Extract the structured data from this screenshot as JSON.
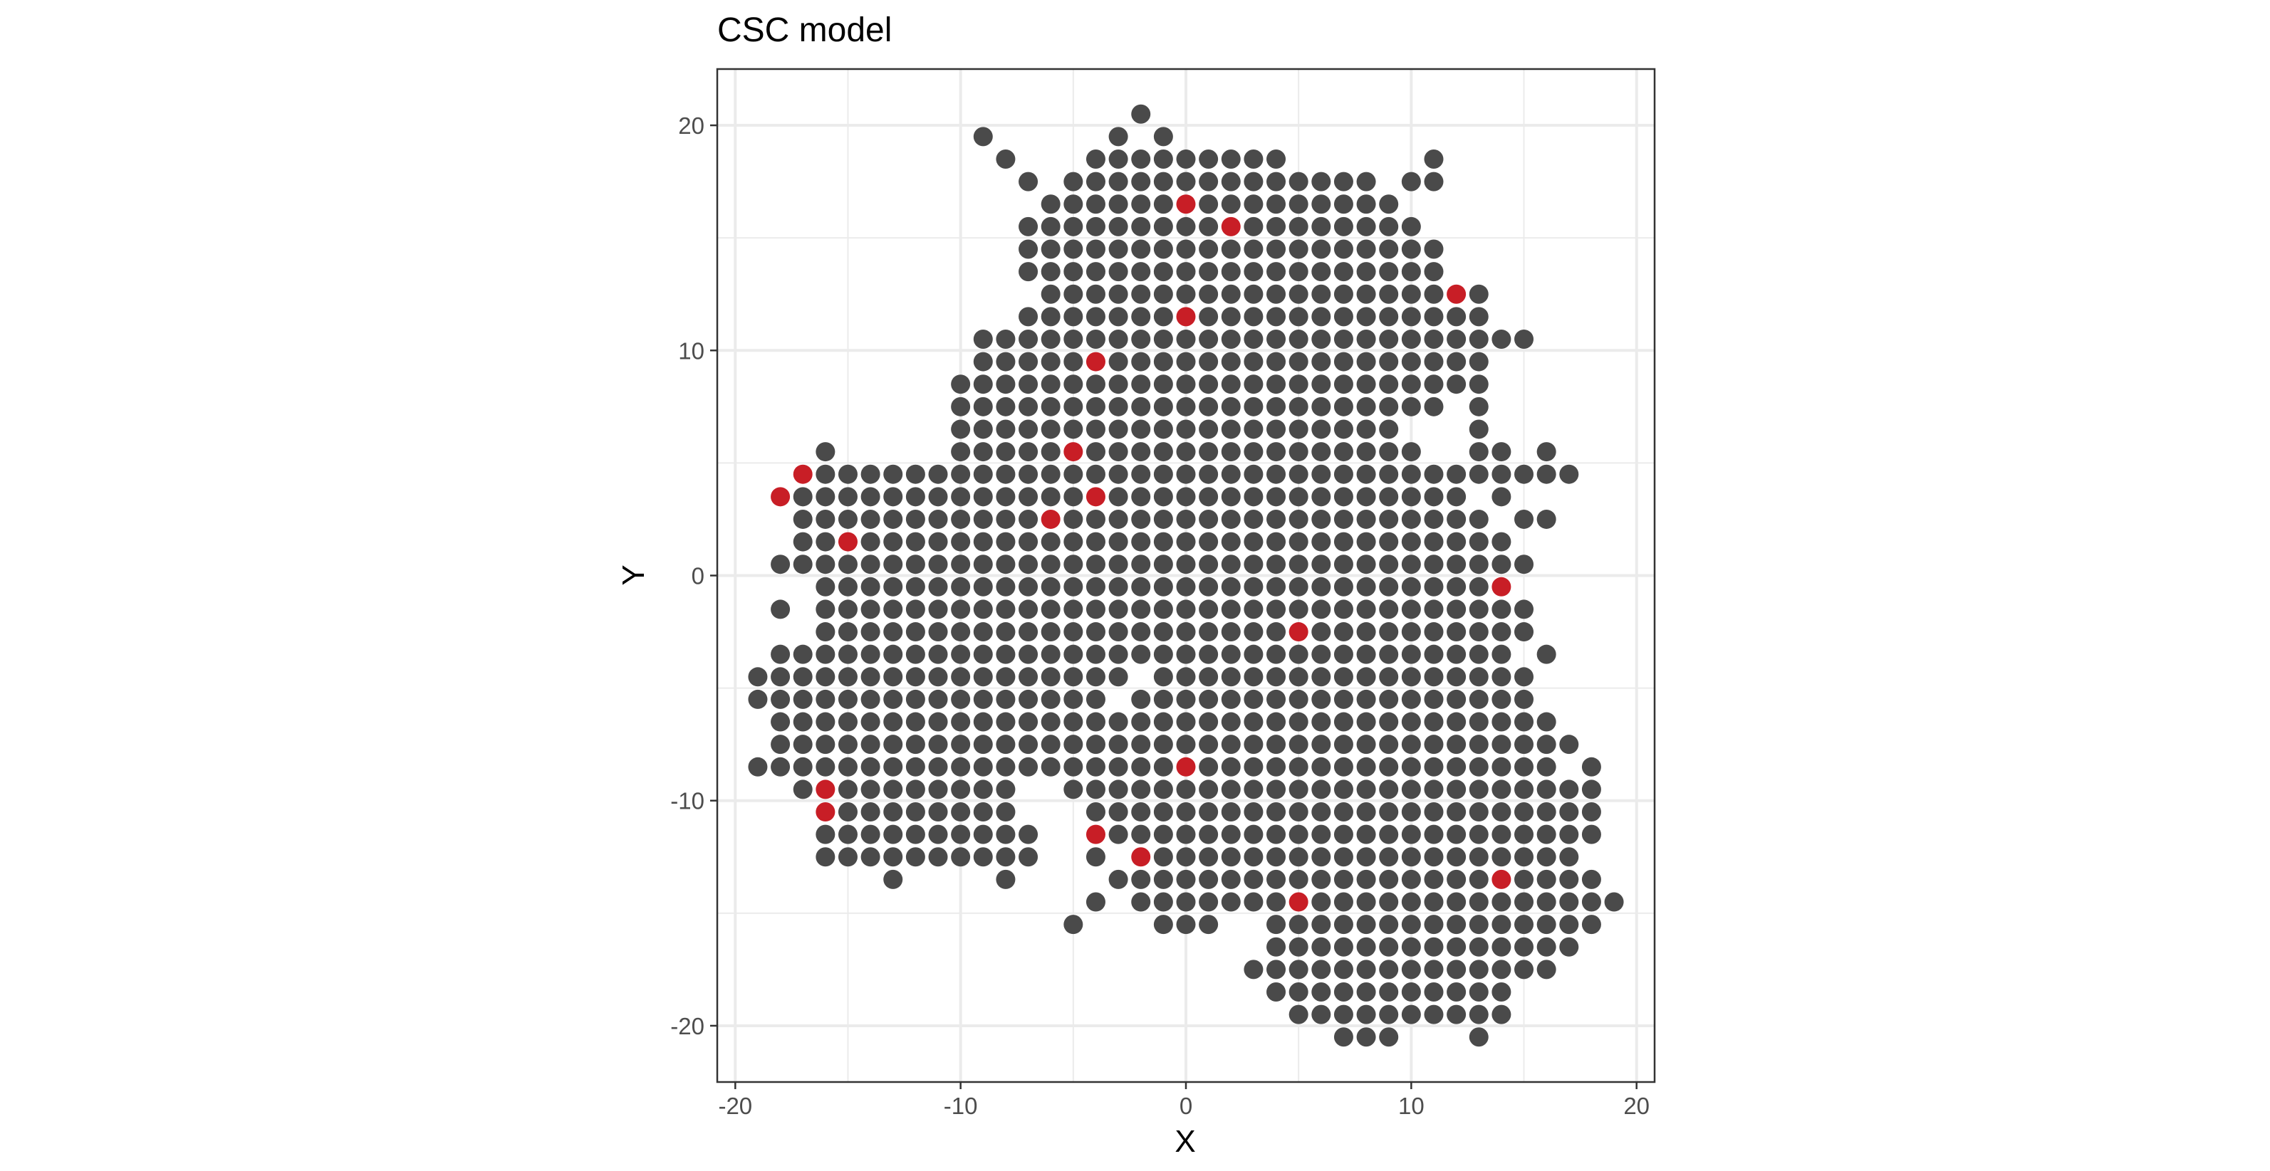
{
  "chart_data": {
    "type": "scatter",
    "title": "CSC model",
    "xlabel": "X",
    "ylabel": "Y",
    "xlim": [
      -20.8,
      20.8
    ],
    "ylim": [
      -22.5,
      22.5
    ],
    "x_ticks": [
      -20,
      -10,
      0,
      10,
      20
    ],
    "y_ticks": [
      -20,
      -10,
      0,
      10,
      20
    ],
    "x_tick_labels": [
      "-20",
      "-10",
      "0",
      "10",
      "20"
    ],
    "y_tick_labels": [
      "-20",
      "-10",
      "0",
      "10",
      "20"
    ],
    "grid": true,
    "legend": "none",
    "colors": {
      "base": "#4a4a4a",
      "highlight": "#c81e26",
      "grid": "#ebebeb",
      "panel_border": "#333333"
    },
    "rows": [
      {
        "y": 20.5,
        "x": [
          -2
        ]
      },
      {
        "y": 19.5,
        "x": [
          -9,
          -3,
          -1
        ]
      },
      {
        "y": 18.5,
        "x": [
          -8,
          -4,
          -3,
          -2,
          -1,
          0,
          1,
          2,
          3,
          4,
          11
        ]
      },
      {
        "y": 17.5,
        "x": [
          -7,
          -5,
          -4,
          -3,
          -2,
          -1,
          0,
          1,
          2,
          3,
          4,
          5,
          6,
          7,
          8,
          10,
          11
        ]
      },
      {
        "y": 16.5,
        "x": [
          -6,
          -5,
          -4,
          -3,
          -2,
          -1,
          0,
          1,
          2,
          3,
          4,
          5,
          6,
          7,
          8,
          9
        ]
      },
      {
        "y": 15.5,
        "x": [
          -7,
          -6,
          -5,
          -4,
          -3,
          -2,
          -1,
          0,
          1,
          2,
          3,
          4,
          5,
          6,
          7,
          8,
          9,
          10
        ]
      },
      {
        "y": 14.5,
        "x": [
          -7,
          -6,
          -5,
          -4,
          -3,
          -2,
          -1,
          0,
          1,
          2,
          3,
          4,
          5,
          6,
          7,
          8,
          9,
          10,
          11
        ]
      },
      {
        "y": 13.5,
        "x": [
          -7,
          -6,
          -5,
          -4,
          -3,
          -2,
          -1,
          0,
          1,
          2,
          3,
          4,
          5,
          6,
          7,
          8,
          9,
          10,
          11
        ]
      },
      {
        "y": 12.5,
        "x": [
          -6,
          -5,
          -4,
          -3,
          -2,
          -1,
          0,
          1,
          2,
          3,
          4,
          5,
          6,
          7,
          8,
          9,
          10,
          11,
          12,
          13
        ]
      },
      {
        "y": 11.5,
        "x": [
          -7,
          -6,
          -5,
          -4,
          -3,
          -2,
          -1,
          0,
          1,
          2,
          3,
          4,
          5,
          6,
          7,
          8,
          9,
          10,
          11,
          12,
          13
        ]
      },
      {
        "y": 10.5,
        "x": [
          -9,
          -8,
          -7,
          -6,
          -5,
          -4,
          -3,
          -2,
          -1,
          0,
          1,
          2,
          3,
          4,
          5,
          6,
          7,
          8,
          9,
          10,
          11,
          12,
          13,
          14,
          15
        ]
      },
      {
        "y": 9.5,
        "x": [
          -9,
          -8,
          -7,
          -6,
          -5,
          -4,
          -3,
          -2,
          -1,
          0,
          1,
          2,
          3,
          4,
          5,
          6,
          7,
          8,
          9,
          10,
          11,
          12,
          13
        ]
      },
      {
        "y": 8.5,
        "x": [
          -10,
          -9,
          -8,
          -7,
          -6,
          -5,
          -4,
          -3,
          -2,
          -1,
          0,
          1,
          2,
          3,
          4,
          5,
          6,
          7,
          8,
          9,
          10,
          11,
          12,
          13
        ]
      },
      {
        "y": 7.5,
        "x": [
          -10,
          -9,
          -8,
          -7,
          -6,
          -5,
          -4,
          -3,
          -2,
          -1,
          0,
          1,
          2,
          3,
          4,
          5,
          6,
          7,
          8,
          9,
          10,
          11,
          13
        ]
      },
      {
        "y": 6.5,
        "x": [
          -10,
          -9,
          -8,
          -7,
          -6,
          -5,
          -4,
          -3,
          -2,
          -1,
          0,
          1,
          2,
          3,
          4,
          5,
          6,
          7,
          8,
          9,
          13
        ]
      },
      {
        "y": 5.5,
        "x": [
          -16,
          -10,
          -9,
          -8,
          -7,
          -6,
          -5,
          -4,
          -3,
          -2,
          -1,
          0,
          1,
          2,
          3,
          4,
          5,
          6,
          7,
          8,
          9,
          10,
          13,
          14,
          16
        ]
      },
      {
        "y": 4.5,
        "x": [
          -17,
          -16,
          -15,
          -14,
          -13,
          -12,
          -11,
          -10,
          -9,
          -8,
          -7,
          -6,
          -5,
          -4,
          -3,
          -2,
          -1,
          0,
          1,
          2,
          3,
          4,
          5,
          6,
          7,
          8,
          9,
          10,
          11,
          12,
          13,
          14,
          15,
          16,
          17
        ]
      },
      {
        "y": 3.5,
        "x": [
          -18,
          -17,
          -16,
          -15,
          -14,
          -13,
          -12,
          -11,
          -10,
          -9,
          -8,
          -7,
          -6,
          -5,
          -4,
          -3,
          -2,
          -1,
          0,
          1,
          2,
          3,
          4,
          5,
          6,
          7,
          8,
          9,
          10,
          11,
          12,
          14
        ]
      },
      {
        "y": 2.5,
        "x": [
          -17,
          -16,
          -15,
          -14,
          -13,
          -12,
          -11,
          -10,
          -9,
          -8,
          -7,
          -6,
          -5,
          -4,
          -3,
          -2,
          -1,
          0,
          1,
          2,
          3,
          4,
          5,
          6,
          7,
          8,
          9,
          10,
          11,
          12,
          13,
          15,
          16
        ]
      },
      {
        "y": 1.5,
        "x": [
          -17,
          -16,
          -15,
          -14,
          -13,
          -12,
          -11,
          -10,
          -9,
          -8,
          -7,
          -6,
          -5,
          -4,
          -3,
          -2,
          -1,
          0,
          1,
          2,
          3,
          4,
          5,
          6,
          7,
          8,
          9,
          10,
          11,
          12,
          13,
          14
        ]
      },
      {
        "y": 0.5,
        "x": [
          -18,
          -17,
          -16,
          -15,
          -14,
          -13,
          -12,
          -11,
          -10,
          -9,
          -8,
          -7,
          -6,
          -5,
          -4,
          -3,
          -2,
          -1,
          0,
          1,
          2,
          3,
          4,
          5,
          6,
          7,
          8,
          9,
          10,
          11,
          12,
          13,
          14,
          15
        ]
      },
      {
        "y": -0.5,
        "x": [
          -16,
          -15,
          -14,
          -13,
          -12,
          -11,
          -10,
          -9,
          -8,
          -7,
          -6,
          -5,
          -4,
          -3,
          -2,
          -1,
          0,
          1,
          2,
          3,
          4,
          5,
          6,
          7,
          8,
          9,
          10,
          11,
          12,
          13,
          14
        ]
      },
      {
        "y": -1.5,
        "x": [
          -18,
          -16,
          -15,
          -14,
          -13,
          -12,
          -11,
          -10,
          -9,
          -8,
          -7,
          -6,
          -5,
          -4,
          -3,
          -2,
          -1,
          0,
          1,
          2,
          3,
          4,
          5,
          6,
          7,
          8,
          9,
          10,
          11,
          12,
          13,
          14,
          15
        ]
      },
      {
        "y": -2.5,
        "x": [
          -16,
          -15,
          -14,
          -13,
          -12,
          -11,
          -10,
          -9,
          -8,
          -7,
          -6,
          -5,
          -4,
          -3,
          -2,
          -1,
          0,
          1,
          2,
          3,
          4,
          5,
          6,
          7,
          8,
          9,
          10,
          11,
          12,
          13,
          14,
          15
        ]
      },
      {
        "y": -3.5,
        "x": [
          -18,
          -17,
          -16,
          -15,
          -14,
          -13,
          -12,
          -11,
          -10,
          -9,
          -8,
          -7,
          -6,
          -5,
          -4,
          -3,
          -2,
          -1,
          0,
          1,
          2,
          3,
          4,
          5,
          6,
          7,
          8,
          9,
          10,
          11,
          12,
          13,
          14,
          16
        ]
      },
      {
        "y": -4.5,
        "x": [
          -19,
          -18,
          -17,
          -16,
          -15,
          -14,
          -13,
          -12,
          -11,
          -10,
          -9,
          -8,
          -7,
          -6,
          -5,
          -4,
          -3,
          -1,
          0,
          1,
          2,
          3,
          4,
          5,
          6,
          7,
          8,
          9,
          10,
          11,
          12,
          13,
          14,
          15
        ]
      },
      {
        "y": -5.5,
        "x": [
          -19,
          -18,
          -17,
          -16,
          -15,
          -14,
          -13,
          -12,
          -11,
          -10,
          -9,
          -8,
          -7,
          -6,
          -5,
          -4,
          -2,
          -1,
          0,
          1,
          2,
          3,
          4,
          5,
          6,
          7,
          8,
          9,
          10,
          11,
          12,
          13,
          14,
          15
        ]
      },
      {
        "y": -6.5,
        "x": [
          -18,
          -17,
          -16,
          -15,
          -14,
          -13,
          -12,
          -11,
          -10,
          -9,
          -8,
          -7,
          -6,
          -5,
          -4,
          -3,
          -2,
          -1,
          0,
          1,
          2,
          3,
          4,
          5,
          6,
          7,
          8,
          9,
          10,
          11,
          12,
          13,
          14,
          15,
          16
        ]
      },
      {
        "y": -7.5,
        "x": [
          -18,
          -17,
          -16,
          -15,
          -14,
          -13,
          -12,
          -11,
          -10,
          -9,
          -8,
          -7,
          -6,
          -5,
          -4,
          -3,
          -2,
          -1,
          0,
          1,
          2,
          3,
          4,
          5,
          6,
          7,
          8,
          9,
          10,
          11,
          12,
          13,
          14,
          15,
          16,
          17
        ]
      },
      {
        "y": -8.5,
        "x": [
          -19,
          -18,
          -17,
          -16,
          -15,
          -14,
          -13,
          -12,
          -11,
          -10,
          -9,
          -8,
          -7,
          -6,
          -5,
          -4,
          -3,
          -2,
          -1,
          0,
          1,
          2,
          3,
          4,
          5,
          6,
          7,
          8,
          9,
          10,
          11,
          12,
          13,
          14,
          15,
          16,
          18
        ]
      },
      {
        "y": -9.5,
        "x": [
          -17,
          -16,
          -15,
          -14,
          -13,
          -12,
          -11,
          -10,
          -9,
          -8,
          -5,
          -4,
          -3,
          -2,
          -1,
          0,
          1,
          2,
          3,
          4,
          5,
          6,
          7,
          8,
          9,
          10,
          11,
          12,
          13,
          14,
          15,
          16,
          17,
          18
        ]
      },
      {
        "y": -10.5,
        "x": [
          -16,
          -15,
          -14,
          -13,
          -12,
          -11,
          -10,
          -9,
          -8,
          -4,
          -3,
          -2,
          -1,
          0,
          1,
          2,
          3,
          4,
          5,
          6,
          7,
          8,
          9,
          10,
          11,
          12,
          13,
          14,
          15,
          16,
          17,
          18
        ]
      },
      {
        "y": -11.5,
        "x": [
          -16,
          -15,
          -14,
          -13,
          -12,
          -11,
          -10,
          -9,
          -8,
          -7,
          -4,
          -3,
          -2,
          -1,
          0,
          1,
          2,
          3,
          4,
          5,
          6,
          7,
          8,
          9,
          10,
          11,
          12,
          13,
          14,
          15,
          16,
          17,
          18
        ]
      },
      {
        "y": -12.5,
        "x": [
          -16,
          -15,
          -14,
          -13,
          -12,
          -11,
          -10,
          -9,
          -8,
          -7,
          -4,
          -2,
          -1,
          0,
          1,
          2,
          3,
          4,
          5,
          6,
          7,
          8,
          9,
          10,
          11,
          12,
          13,
          14,
          15,
          16,
          17
        ]
      },
      {
        "y": -13.5,
        "x": [
          -13,
          -8,
          -3,
          -2,
          -1,
          0,
          1,
          2,
          3,
          4,
          5,
          6,
          7,
          8,
          9,
          10,
          11,
          12,
          13,
          14,
          15,
          16,
          17,
          18
        ]
      },
      {
        "y": -14.5,
        "x": [
          -4,
          -2,
          -1,
          0,
          1,
          2,
          3,
          4,
          5,
          6,
          7,
          8,
          9,
          10,
          11,
          12,
          13,
          14,
          15,
          16,
          17,
          18,
          19
        ]
      },
      {
        "y": -15.5,
        "x": [
          -5,
          -1,
          0,
          1,
          4,
          5,
          6,
          7,
          8,
          9,
          10,
          11,
          12,
          13,
          14,
          15,
          16,
          17,
          18
        ]
      },
      {
        "y": -16.5,
        "x": [
          4,
          5,
          6,
          7,
          8,
          9,
          10,
          11,
          12,
          13,
          14,
          15,
          16,
          17
        ]
      },
      {
        "y": -17.5,
        "x": [
          3,
          4,
          5,
          6,
          7,
          8,
          9,
          10,
          11,
          12,
          13,
          14,
          15,
          16
        ]
      },
      {
        "y": -18.5,
        "x": [
          4,
          5,
          6,
          7,
          8,
          9,
          10,
          11,
          12,
          13,
          14
        ]
      },
      {
        "y": -19.5,
        "x": [
          5,
          6,
          7,
          8,
          9,
          10,
          11,
          12,
          13,
          14
        ]
      },
      {
        "y": -20.5,
        "x": [
          7,
          8,
          9,
          13
        ]
      }
    ],
    "highlighted_points": [
      [
        0,
        16.5
      ],
      [
        2,
        15.5
      ],
      [
        12,
        12.5
      ],
      [
        0,
        11.5
      ],
      [
        -4,
        9.5
      ],
      [
        -5,
        5.5
      ],
      [
        -17,
        4.5
      ],
      [
        -18,
        3.5
      ],
      [
        -4,
        3.5
      ],
      [
        -6,
        2.5
      ],
      [
        -15,
        1.5
      ],
      [
        14,
        -0.5
      ],
      [
        5,
        -2.5
      ],
      [
        0,
        -8.5
      ],
      [
        -16,
        -9.5
      ],
      [
        -16,
        -10.5
      ],
      [
        -4,
        -11.5
      ],
      [
        -2,
        -12.5
      ],
      [
        14,
        -13.5
      ],
      [
        5,
        -14.5
      ]
    ]
  }
}
